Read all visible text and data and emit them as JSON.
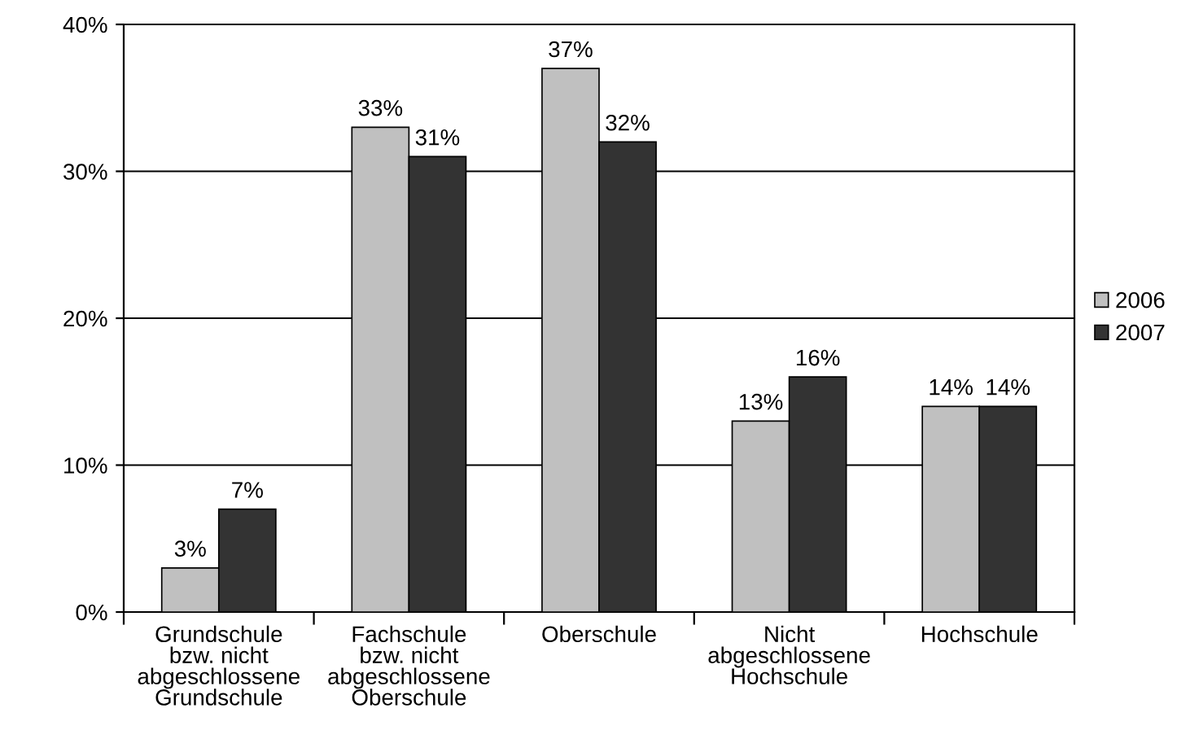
{
  "chart_data": {
    "type": "bar",
    "categories": [
      "Grundschule\nbzw. nicht\nabgeschlossene\nGrundschule",
      "Fachschule\nbzw. nicht\nabgeschlossene\nOberschule",
      "Oberschule",
      "Nicht\nabgeschlossene\nHochschule",
      "Hochschule"
    ],
    "series": [
      {
        "name": "2006",
        "color": "#c0c0c0",
        "values": [
          3,
          33,
          37,
          13,
          14
        ],
        "value_labels": [
          "3%",
          "33%",
          "37%",
          "13%",
          "14%"
        ]
      },
      {
        "name": "2007",
        "color": "#333333",
        "values": [
          7,
          31,
          32,
          16,
          14
        ],
        "value_labels": [
          "7%",
          "31%",
          "32%",
          "16%",
          "14%"
        ]
      }
    ],
    "ylim": [
      0,
      40
    ],
    "yticks": [
      {
        "value": 0,
        "label": "0%"
      },
      {
        "value": 10,
        "label": "10%"
      },
      {
        "value": 20,
        "label": "20%"
      },
      {
        "value": 30,
        "label": "30%"
      },
      {
        "value": 40,
        "label": "40%"
      }
    ],
    "grid": "y",
    "legend": "right"
  }
}
